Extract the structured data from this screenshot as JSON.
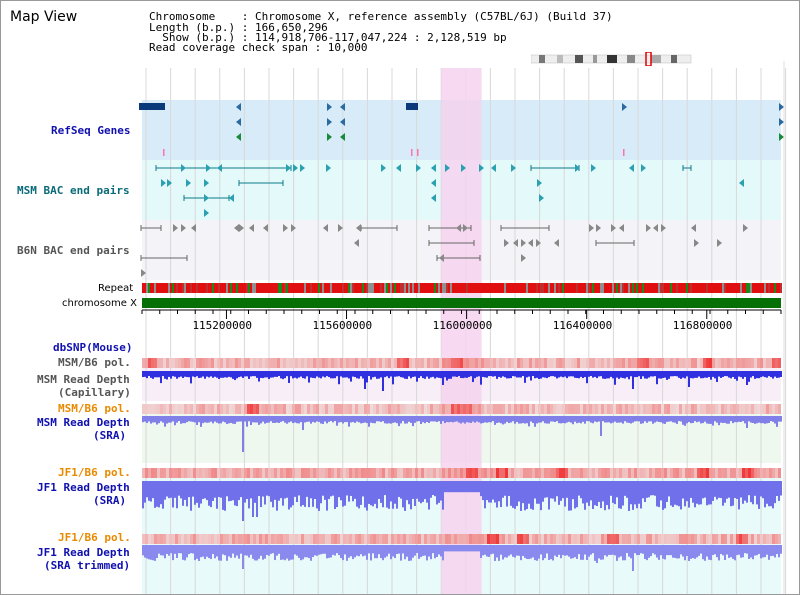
{
  "page": {
    "title": "Map View"
  },
  "header": {
    "line1": "Chromosome    : Chromosome X, reference assembly (C57BL/6J) (Build 37)",
    "line2": "Length (b.p.) : 166,650,296",
    "line3": "  Show (b.p.) : 114,918,706-117,047,224 : 2,128,519 bp",
    "line4": "Read coverage check span : 10,000"
  },
  "tracks": {
    "refseq": "RefSeq Genes",
    "msm_bac": "MSM BAC end pairs",
    "b6n_bac": "B6N BAC end pairs",
    "repeat": "Repeat",
    "chromosome": "chromosome X",
    "dbsnp": "dbSNP(Mouse)",
    "msm_b6_pol": "MSM/B6 pol.",
    "msm_read_depth_cap_1": "MSM Read Depth",
    "msm_read_depth_cap_2": "(Capillary)",
    "msm_b6_pol_2": "MSM/B6 pol.",
    "msm_read_depth_sra_1": "MSM Read Depth",
    "msm_read_depth_sra_2": "(SRA)",
    "jf1_b6_pol": "JF1/B6 pol.",
    "jf1_read_depth_sra_1": "JF1 Read Depth",
    "jf1_read_depth_sra_2": "(SRA)",
    "jf1_b6_pol_2": "JF1/B6 pol.",
    "jf1_read_depth_trim_1": "JF1 Read Depth",
    "jf1_read_depth_trim_2": "(SRA trimmed)"
  },
  "axis": {
    "ticks": [
      "115200000",
      "115600000",
      "116000000",
      "116400000",
      "116800000"
    ],
    "tick_values": [
      115200000,
      115600000,
      116000000,
      116400000,
      116800000
    ],
    "range": [
      114918706,
      117047224
    ]
  },
  "highlight": {
    "start": 115915000,
    "end": 116050000,
    "color": "#f6d2ee"
  },
  "colors": {
    "refseq_bg": "#d7ecf8",
    "msm_bac_bg": "#e4fafa",
    "b6n_bac_bg": "#f4f4f8",
    "repeat_red": "#e01010",
    "chromosome_green": "#067006",
    "depth_blue": "#3030e0",
    "depth_light": "#7070e8",
    "polymorphism_red": "#f06060"
  }
}
